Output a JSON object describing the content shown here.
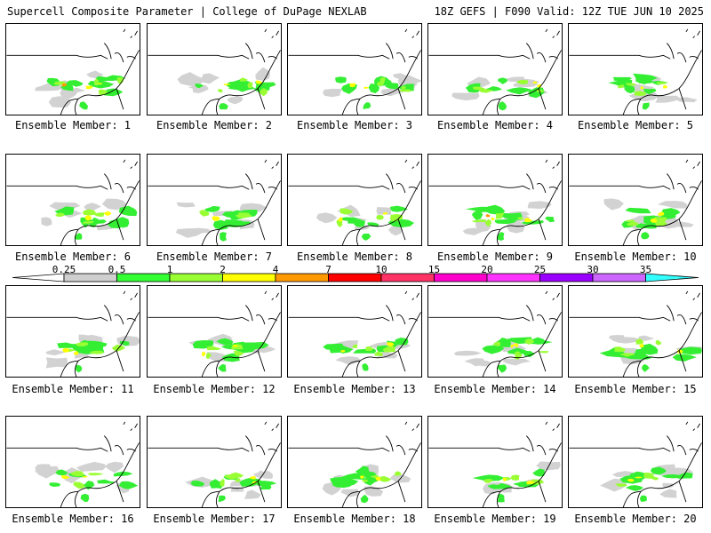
{
  "header": {
    "title": "Supercell Composite Parameter | College of DuPage NEXLAB",
    "run_info": "18Z GEFS | F090 Valid: 12Z TUE JUN 10 2025"
  },
  "colorbar": {
    "labels": [
      "0.25",
      "0.5",
      "1",
      "2",
      "4",
      "7",
      "10",
      "15",
      "20",
      "25",
      "30",
      "35"
    ],
    "colors": [
      "#cfcfcf",
      "#33ff33",
      "#99ff33",
      "#ffff00",
      "#ff9900",
      "#ff0000",
      "#ff3366",
      "#ff00cc",
      "#ff33ff",
      "#9900ff",
      "#cc66ff",
      "#33ffff"
    ]
  },
  "members": [
    "Ensemble Member: 1",
    "Ensemble Member: 2",
    "Ensemble Member: 3",
    "Ensemble Member: 4",
    "Ensemble Member: 5",
    "Ensemble Member: 6",
    "Ensemble Member: 7",
    "Ensemble Member: 8",
    "Ensemble Member: 9",
    "Ensemble Member: 10",
    "Ensemble Member: 11",
    "Ensemble Member: 12",
    "Ensemble Member: 13",
    "Ensemble Member: 14",
    "Ensemble Member: 15",
    "Ensemble Member: 16",
    "Ensemble Member: 17",
    "Ensemble Member: 18",
    "Ensemble Member: 19",
    "Ensemble Member: 20"
  ]
}
